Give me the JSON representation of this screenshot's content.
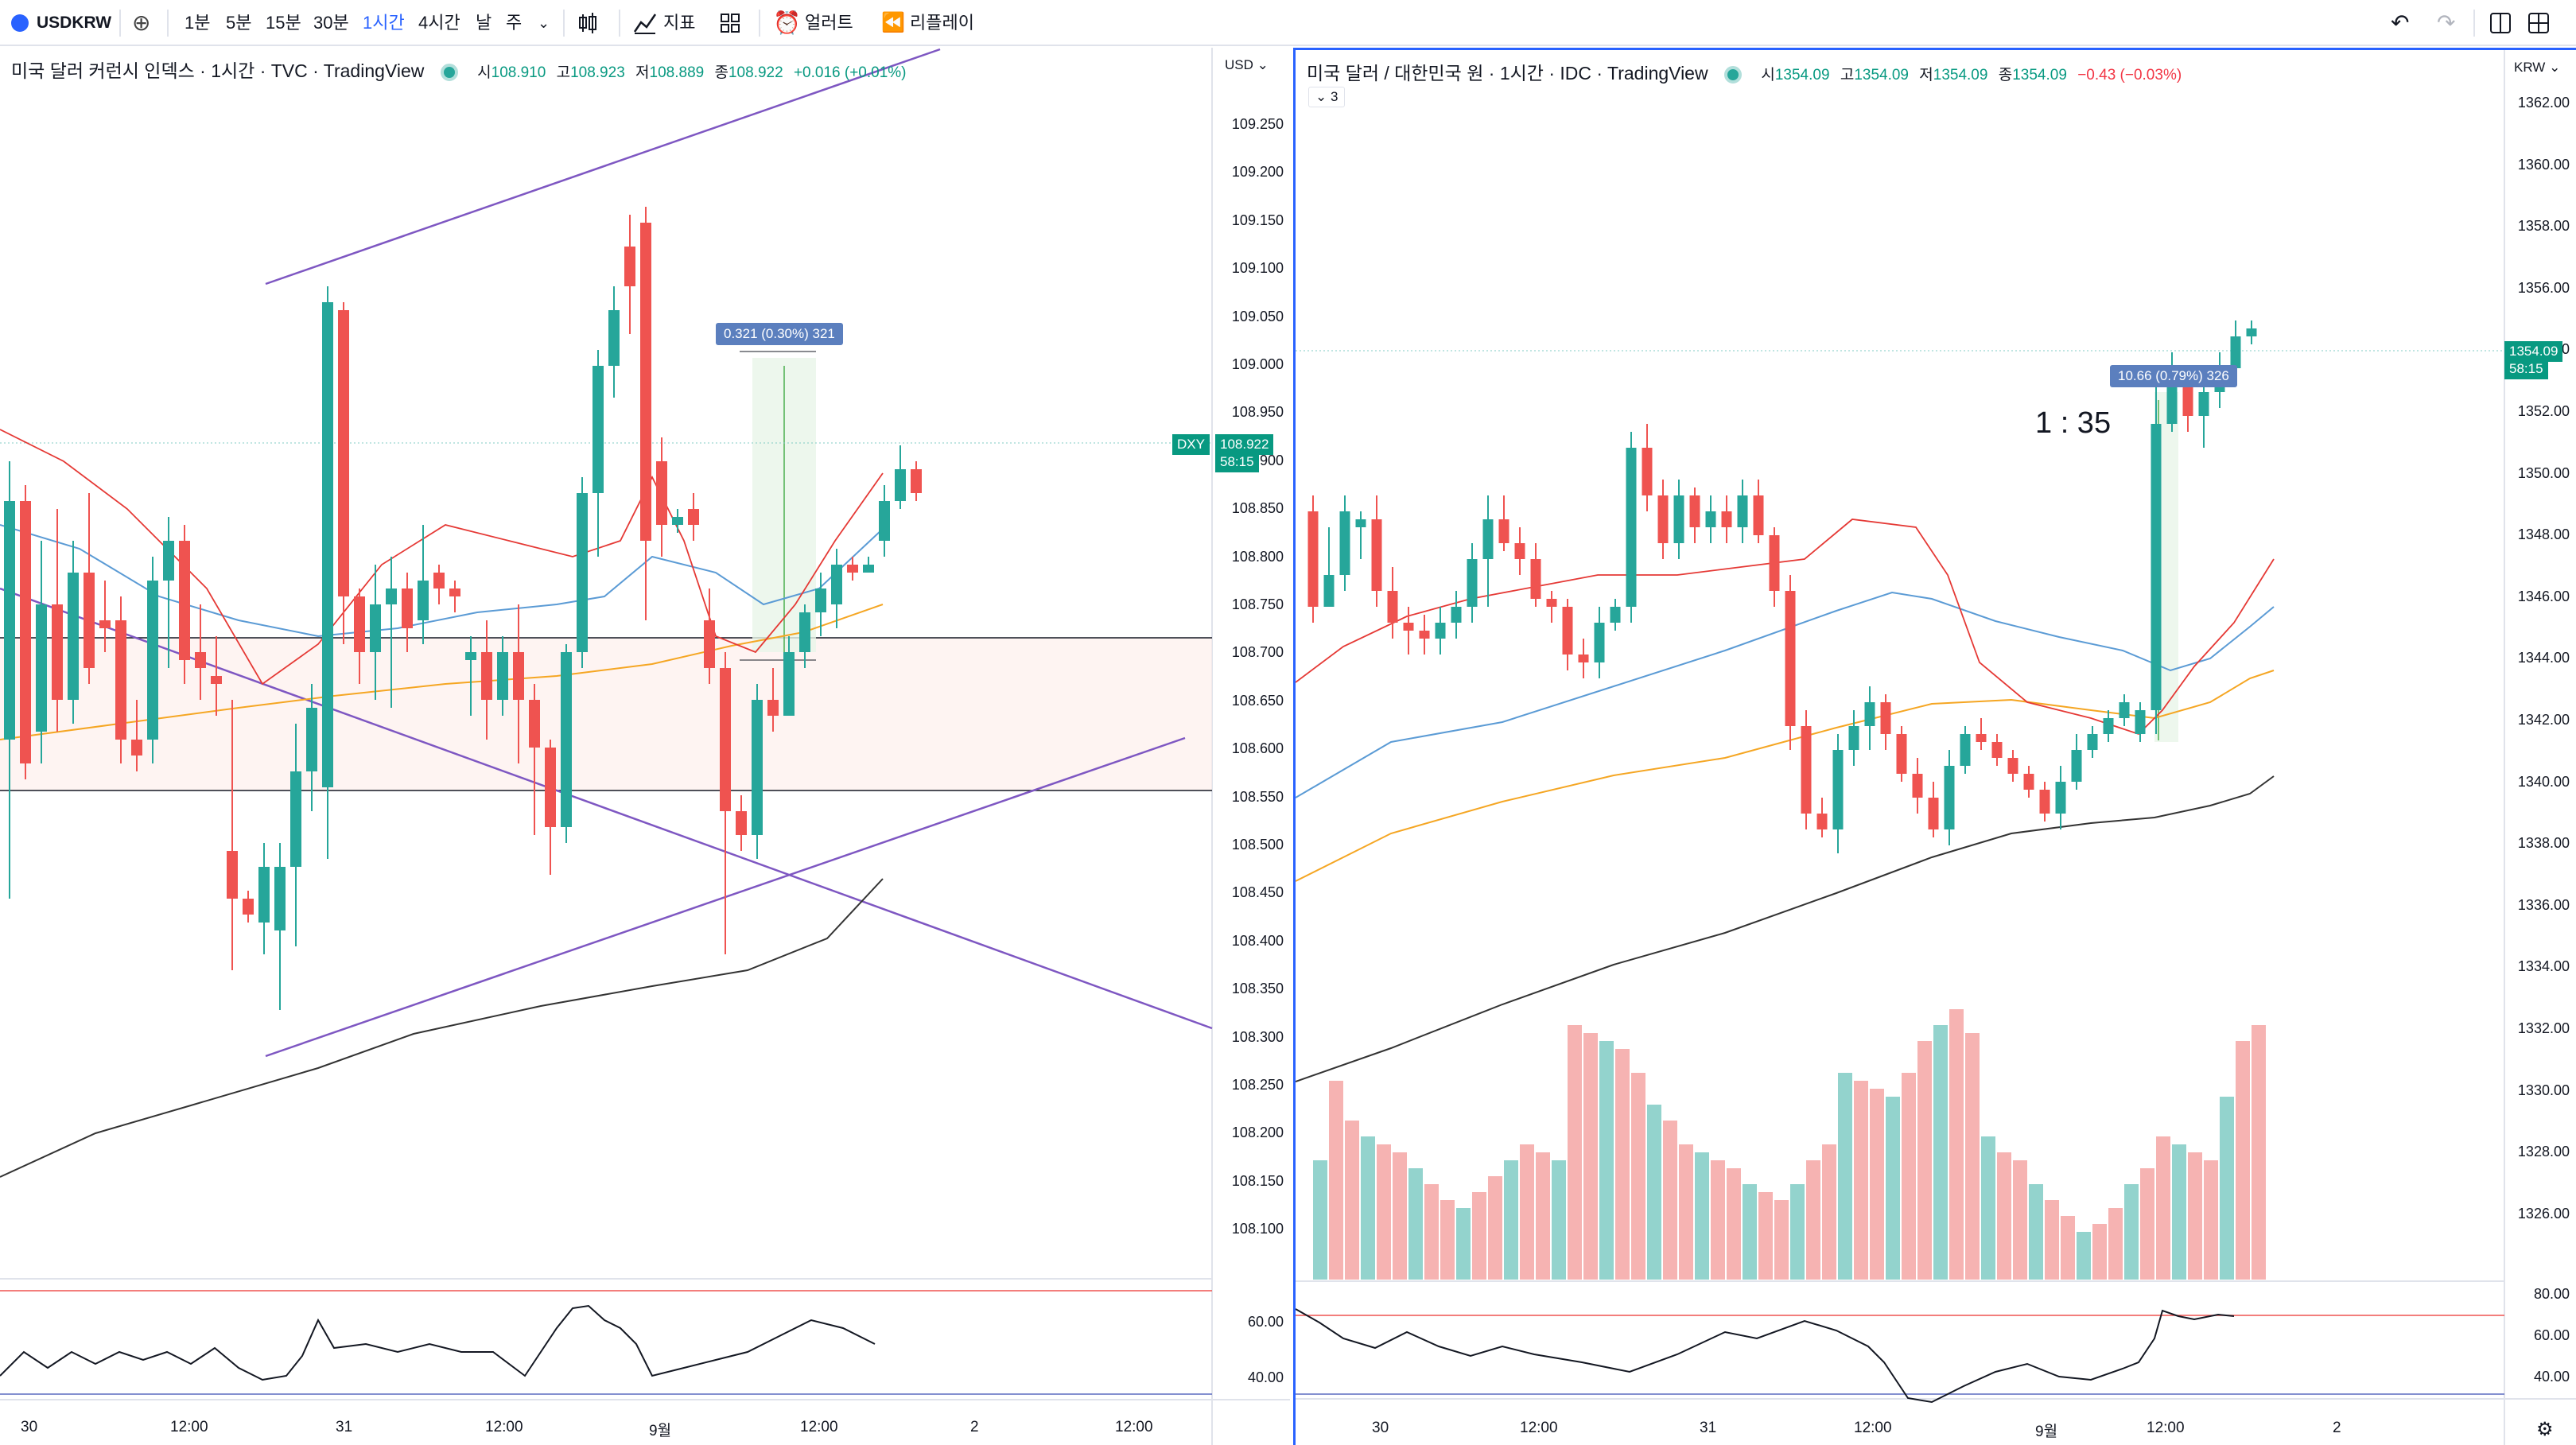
{
  "toolbar": {
    "symbol": "USDKRW",
    "intervals": [
      "1분",
      "5분",
      "15분",
      "30분",
      "1시간",
      "4시간",
      "날",
      "주"
    ],
    "active_interval": "1시간",
    "indicators_label": "지표",
    "alert_label": "얼러트",
    "replay_label": "리플레이"
  },
  "left_chart": {
    "title": "미국 달러 커런시 인덱스 · 1시간 · TVC · TradingView",
    "ohlc": {
      "o_label": "시",
      "o": "108.910",
      "h_label": "고",
      "h": "108.923",
      "l_label": "저",
      "l": "108.889",
      "c_label": "종",
      "c": "108.922",
      "change": "+0.016 (+0.01%)"
    },
    "currency": "USD",
    "price_ticks": [
      "109.250",
      "109.200",
      "109.150",
      "109.100",
      "109.050",
      "109.000",
      "108.950",
      "108.900",
      "108.850",
      "108.800",
      "108.750",
      "108.700",
      "108.650",
      "108.600",
      "108.550",
      "108.500",
      "108.450",
      "108.400",
      "108.350",
      "108.300",
      "108.250",
      "108.200",
      "108.150",
      "108.100"
    ],
    "symbol_tag": "DXY",
    "last_price": "108.922",
    "countdown": "58:15",
    "measure_label": "0.321 (0.30%) 321",
    "oscillator_ticks": [
      "60.00",
      "40.00"
    ],
    "time_ticks": [
      "30",
      "12:00",
      "31",
      "12:00",
      "9월",
      "12:00",
      "2",
      "12:00"
    ]
  },
  "right_chart": {
    "title": "미국 달러 / 대한민국 원 · 1시간 · IDC · TradingView",
    "ohlc": {
      "o_label": "시",
      "o": "1354.09",
      "h_label": "고",
      "h": "1354.09",
      "l_label": "저",
      "l": "1354.09",
      "c_label": "종",
      "c": "1354.09",
      "change": "−0.43 (−0.03%)"
    },
    "indicator_count": "3",
    "currency": "KRW",
    "price_ticks": [
      "1362.00",
      "1360.00",
      "1358.00",
      "1356.00",
      "1354.00",
      "1352.00",
      "1350.00",
      "1348.00",
      "1346.00",
      "1344.00",
      "1342.00",
      "1340.00",
      "1338.00",
      "1336.00",
      "1334.00",
      "1332.00",
      "1330.00",
      "1328.00",
      "1326.00"
    ],
    "last_price": "1354.09",
    "countdown": "58:15",
    "measure_label": "10.66 (0.79%) 326",
    "ratio_annotation": "1 : 35",
    "oscillator_ticks": [
      "80.00",
      "60.00",
      "40.00"
    ],
    "time_ticks": [
      "30",
      "12:00",
      "31",
      "12:00",
      "9월",
      "12:00",
      "2"
    ]
  },
  "colors": {
    "up": "#26a69a",
    "down": "#ef5350",
    "accent": "#2962ff",
    "purple": "#7e57c2",
    "ema_red": "#e53935",
    "ema_blue": "#5b9bd5",
    "ema_orange": "#f5a623"
  },
  "icons": [
    "plus-circle-icon",
    "candles-icon",
    "indicators-icon",
    "templates-icon",
    "alert-clock-icon",
    "replay-icon",
    "undo-icon",
    "redo-icon",
    "layout-icon",
    "settings-gear-icon"
  ]
}
